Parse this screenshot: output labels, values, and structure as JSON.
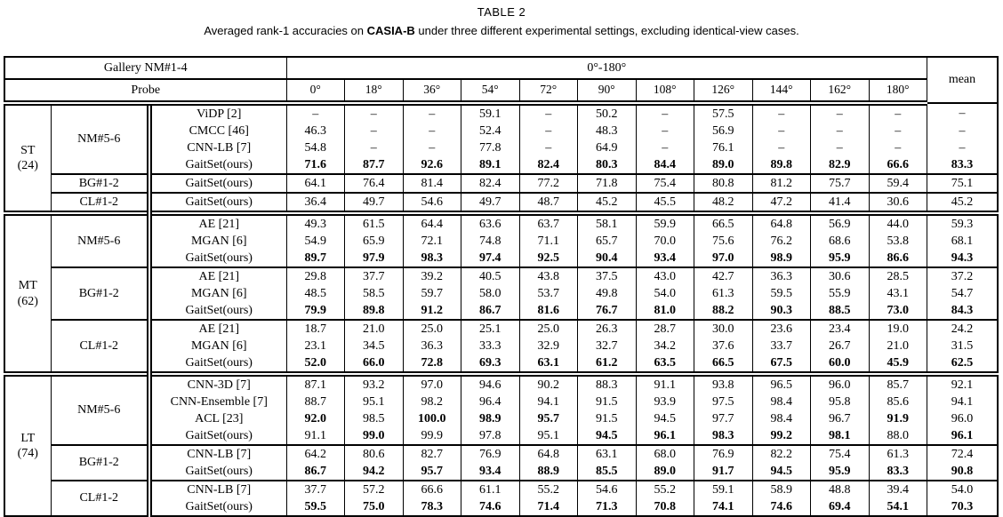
{
  "page": {
    "title": "TABLE 2",
    "caption_prefix": "Averaged rank-1 accuracies on ",
    "caption_bold": "CASIA-B",
    "caption_suffix": " under three different experimental settings, excluding identical-view cases."
  },
  "table": {
    "header": {
      "gallery": "Gallery NM#1-4",
      "probe": "Probe",
      "angle_span": "0°-180°",
      "mean": "mean",
      "angles": [
        "0°",
        "18°",
        "36°",
        "54°",
        "72°",
        "90°",
        "108°",
        "126°",
        "144°",
        "162°",
        "180°"
      ]
    },
    "sections": [
      {
        "label": "ST",
        "count": "(24)",
        "groups": [
          {
            "probe": "NM#5-6",
            "rows": [
              {
                "method": "ViDP [2]",
                "values": [
                  "–",
                  "–",
                  "–",
                  "59.1",
                  "–",
                  "50.2",
                  "–",
                  "57.5",
                  "–",
                  "–",
                  "–",
                  "–"
                ]
              },
              {
                "method": "CMCC [46]",
                "values": [
                  "46.3",
                  "–",
                  "–",
                  "52.4",
                  "–",
                  "48.3",
                  "–",
                  "56.9",
                  "–",
                  "–",
                  "–",
                  "–"
                ]
              },
              {
                "method": "CNN-LB [7]",
                "values": [
                  "54.8",
                  "–",
                  "–",
                  "77.8",
                  "–",
                  "64.9",
                  "–",
                  "76.1",
                  "–",
                  "–",
                  "–",
                  "–"
                ]
              },
              {
                "method": "GaitSet(ours)",
                "values": [
                  "71.6",
                  "87.7",
                  "92.6",
                  "89.1",
                  "82.4",
                  "80.3",
                  "84.4",
                  "89.0",
                  "89.8",
                  "82.9",
                  "66.6",
                  "83.3"
                ],
                "bold_all": true
              }
            ]
          },
          {
            "probe": "BG#1-2",
            "rows": [
              {
                "method": "GaitSet(ours)",
                "values": [
                  "64.1",
                  "76.4",
                  "81.4",
                  "82.4",
                  "77.2",
                  "71.8",
                  "75.4",
                  "80.8",
                  "81.2",
                  "75.7",
                  "59.4",
                  "75.1"
                ]
              }
            ]
          },
          {
            "probe": "CL#1-2",
            "rows": [
              {
                "method": "GaitSet(ours)",
                "values": [
                  "36.4",
                  "49.7",
                  "54.6",
                  "49.7",
                  "48.7",
                  "45.2",
                  "45.5",
                  "48.2",
                  "47.2",
                  "41.4",
                  "30.6",
                  "45.2"
                ]
              }
            ]
          }
        ]
      },
      {
        "label": "MT",
        "count": "(62)",
        "groups": [
          {
            "probe": "NM#5-6",
            "rows": [
              {
                "method": "AE [21]",
                "values": [
                  "49.3",
                  "61.5",
                  "64.4",
                  "63.6",
                  "63.7",
                  "58.1",
                  "59.9",
                  "66.5",
                  "64.8",
                  "56.9",
                  "44.0",
                  "59.3"
                ]
              },
              {
                "method": "MGAN [6]",
                "values": [
                  "54.9",
                  "65.9",
                  "72.1",
                  "74.8",
                  "71.1",
                  "65.7",
                  "70.0",
                  "75.6",
                  "76.2",
                  "68.6",
                  "53.8",
                  "68.1"
                ]
              },
              {
                "method": "GaitSet(ours)",
                "values": [
                  "89.7",
                  "97.9",
                  "98.3",
                  "97.4",
                  "92.5",
                  "90.4",
                  "93.4",
                  "97.0",
                  "98.9",
                  "95.9",
                  "86.6",
                  "94.3"
                ],
                "bold_all": true
              }
            ]
          },
          {
            "probe": "BG#1-2",
            "rows": [
              {
                "method": "AE [21]",
                "values": [
                  "29.8",
                  "37.7",
                  "39.2",
                  "40.5",
                  "43.8",
                  "37.5",
                  "43.0",
                  "42.7",
                  "36.3",
                  "30.6",
                  "28.5",
                  "37.2"
                ]
              },
              {
                "method": "MGAN [6]",
                "values": [
                  "48.5",
                  "58.5",
                  "59.7",
                  "58.0",
                  "53.7",
                  "49.8",
                  "54.0",
                  "61.3",
                  "59.5",
                  "55.9",
                  "43.1",
                  "54.7"
                ]
              },
              {
                "method": "GaitSet(ours)",
                "values": [
                  "79.9",
                  "89.8",
                  "91.2",
                  "86.7",
                  "81.6",
                  "76.7",
                  "81.0",
                  "88.2",
                  "90.3",
                  "88.5",
                  "73.0",
                  "84.3"
                ],
                "bold_all": true
              }
            ]
          },
          {
            "probe": "CL#1-2",
            "rows": [
              {
                "method": "AE [21]",
                "values": [
                  "18.7",
                  "21.0",
                  "25.0",
                  "25.1",
                  "25.0",
                  "26.3",
                  "28.7",
                  "30.0",
                  "23.6",
                  "23.4",
                  "19.0",
                  "24.2"
                ]
              },
              {
                "method": "MGAN [6]",
                "values": [
                  "23.1",
                  "34.5",
                  "36.3",
                  "33.3",
                  "32.9",
                  "32.7",
                  "34.2",
                  "37.6",
                  "33.7",
                  "26.7",
                  "21.0",
                  "31.5"
                ]
              },
              {
                "method": "GaitSet(ours)",
                "values": [
                  "52.0",
                  "66.0",
                  "72.8",
                  "69.3",
                  "63.1",
                  "61.2",
                  "63.5",
                  "66.5",
                  "67.5",
                  "60.0",
                  "45.9",
                  "62.5"
                ],
                "bold_all": true
              }
            ]
          }
        ]
      },
      {
        "label": "LT",
        "count": "(74)",
        "groups": [
          {
            "probe": "NM#5-6",
            "rows": [
              {
                "method": "CNN-3D [7]",
                "values": [
                  "87.1",
                  "93.2",
                  "97.0",
                  "94.6",
                  "90.2",
                  "88.3",
                  "91.1",
                  "93.8",
                  "96.5",
                  "96.0",
                  "85.7",
                  "92.1"
                ]
              },
              {
                "method": "CNN-Ensemble [7]",
                "values": [
                  "88.7",
                  "95.1",
                  "98.2",
                  "96.4",
                  "94.1",
                  "91.5",
                  "93.9",
                  "97.5",
                  "98.4",
                  "95.8",
                  "85.6",
                  "94.1"
                ]
              },
              {
                "method": "ACL [23]",
                "values": [
                  "92.0",
                  "98.5",
                  "100.0",
                  "98.9",
                  "95.7",
                  "91.5",
                  "94.5",
                  "97.7",
                  "98.4",
                  "96.7",
                  "91.9",
                  "96.0"
                ],
                "bold": [
                  1,
                  0,
                  1,
                  1,
                  1,
                  0,
                  0,
                  0,
                  0,
                  0,
                  1,
                  0
                ]
              },
              {
                "method": "GaitSet(ours)",
                "values": [
                  "91.1",
                  "99.0",
                  "99.9",
                  "97.8",
                  "95.1",
                  "94.5",
                  "96.1",
                  "98.3",
                  "99.2",
                  "98.1",
                  "88.0",
                  "96.1"
                ],
                "bold": [
                  0,
                  1,
                  0,
                  0,
                  0,
                  1,
                  1,
                  1,
                  1,
                  1,
                  0,
                  1
                ]
              }
            ]
          },
          {
            "probe": "BG#1-2",
            "rows": [
              {
                "method": "CNN-LB [7]",
                "values": [
                  "64.2",
                  "80.6",
                  "82.7",
                  "76.9",
                  "64.8",
                  "63.1",
                  "68.0",
                  "76.9",
                  "82.2",
                  "75.4",
                  "61.3",
                  "72.4"
                ]
              },
              {
                "method": "GaitSet(ours)",
                "values": [
                  "86.7",
                  "94.2",
                  "95.7",
                  "93.4",
                  "88.9",
                  "85.5",
                  "89.0",
                  "91.7",
                  "94.5",
                  "95.9",
                  "83.3",
                  "90.8"
                ],
                "bold_all": true
              }
            ]
          },
          {
            "probe": "CL#1-2",
            "rows": [
              {
                "method": "CNN-LB [7]",
                "values": [
                  "37.7",
                  "57.2",
                  "66.6",
                  "61.1",
                  "55.2",
                  "54.6",
                  "55.2",
                  "59.1",
                  "58.9",
                  "48.8",
                  "39.4",
                  "54.0"
                ]
              },
              {
                "method": "GaitSet(ours)",
                "values": [
                  "59.5",
                  "75.0",
                  "78.3",
                  "74.6",
                  "71.4",
                  "71.3",
                  "70.8",
                  "74.1",
                  "74.6",
                  "69.4",
                  "54.1",
                  "70.3"
                ],
                "bold_all": true
              }
            ]
          }
        ]
      }
    ]
  }
}
